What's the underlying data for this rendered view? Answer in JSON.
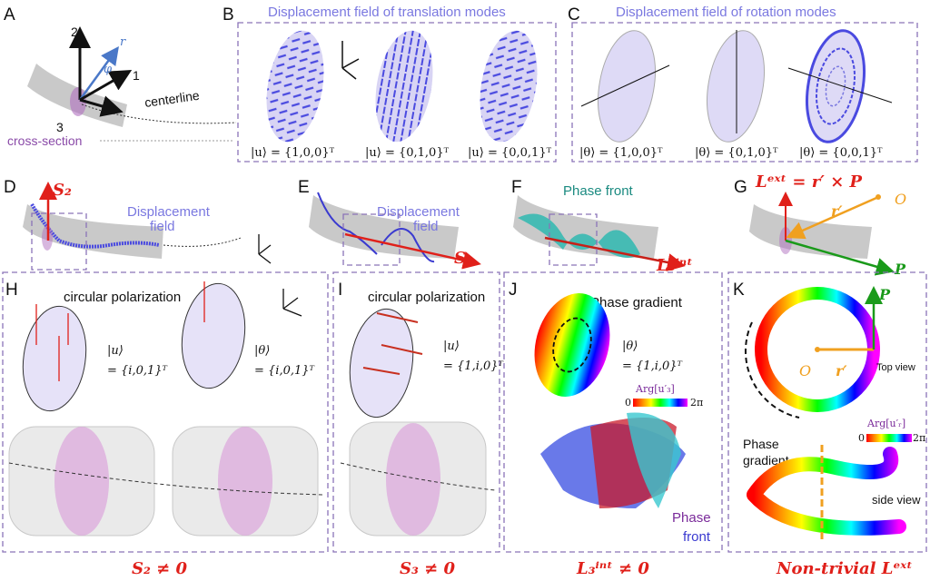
{
  "panels": {
    "A": {
      "letter": "A",
      "axis1": "1",
      "axis2": "2",
      "axis3": "3",
      "r": "r",
      "phi": "φ",
      "centerline": "centerline",
      "cross_section": "cross-section"
    },
    "B": {
      "letter": "B",
      "title": "Displacement field of translation modes",
      "eq1": "|u⟩ = {1,0,0}ᵀ",
      "eq2": "|u⟩ = {0,1,0}ᵀ",
      "eq3": "|u⟩ = {0,0,1}ᵀ"
    },
    "C": {
      "letter": "C",
      "title": "Displacement field of rotation modes",
      "eq1": "|θ⟩ = {1,0,0}ᵀ",
      "eq2": "|θ⟩ = {0,1,0}ᵀ",
      "eq3": "|θ⟩ = {0,0,1}ᵀ"
    },
    "D": {
      "letter": "D",
      "vector": "S₂",
      "label1": "Displacement",
      "label2": "field"
    },
    "E": {
      "letter": "E",
      "vector": "S₃",
      "label1": "Displacement",
      "label2": "field"
    },
    "F": {
      "letter": "F",
      "label": "Phase front",
      "vector": "L₃ⁱⁿᵗ"
    },
    "G": {
      "letter": "G",
      "formula": "Lᵉˣᵗ = r′ × P",
      "origin": "O",
      "rprime": "r′",
      "P": "P"
    },
    "H": {
      "letter": "H",
      "label": "circular polarization",
      "eq1a": "|u⟩",
      "eq1b": "= {i,0,1}ᵀ",
      "eq2a": "|θ⟩",
      "eq2b": "= {i,0,1}ᵀ",
      "footer": "S₂ ≠ 0"
    },
    "I": {
      "letter": "I",
      "label": "circular polarization",
      "eqa": "|u⟩",
      "eqb": "= {1,i,0}ᵀ",
      "footer": "S₃ ≠ 0"
    },
    "J": {
      "letter": "J",
      "label": "Phase gradient",
      "eqa": "|θ⟩",
      "eqb": "= {1,i,0}ᵀ",
      "colorbar_title": "Arg[u′₃]",
      "cb_min": "0",
      "cb_max": "2π",
      "front1": "Phase",
      "front2": "front",
      "footer": "L₃ⁱⁿᵗ ≠ 0"
    },
    "K": {
      "letter": "K",
      "P": "P",
      "origin": "O",
      "rprime": "r′",
      "top_view": "Top view",
      "colorbar_title": "Arg[u′ᵣ]",
      "cb_min": "0",
      "cb_max": "2π",
      "grad1": "Phase",
      "grad2": "gradient",
      "side_view": "side view",
      "footer": "Non-trivial Lᵉˣᵗ"
    }
  },
  "colors": {
    "accent": "#7a78e0",
    "red": "#e0201a",
    "orange": "#f0a020",
    "green": "#1a9a1a",
    "box": "#8a73b8"
  }
}
